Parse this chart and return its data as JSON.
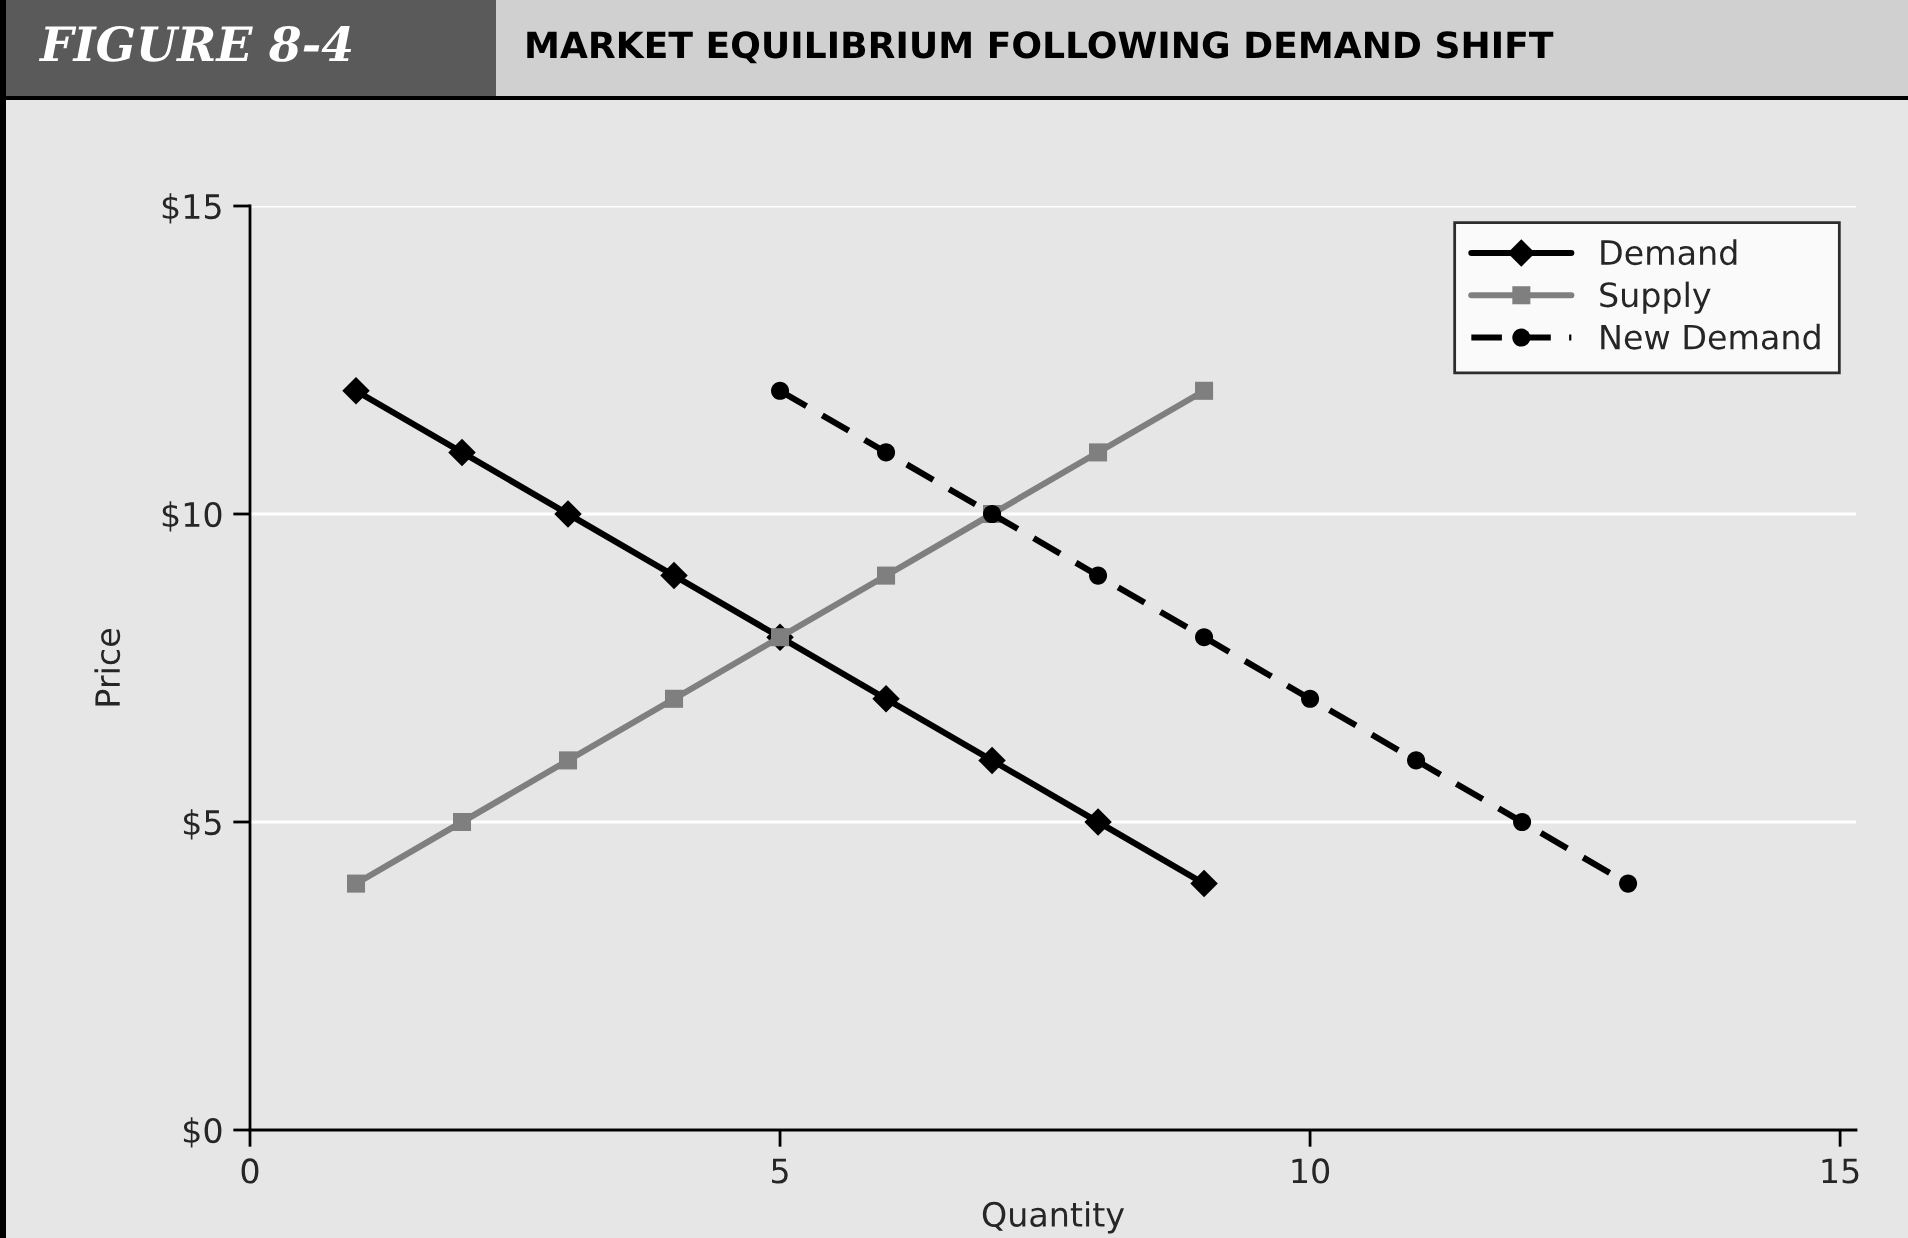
{
  "chart_data": {
    "type": "line",
    "title": "FIGURE 8-4",
    "subtitle": "MARKET EQUILIBRIUM FOLLOWING DEMAND SHIFT",
    "xlabel": "Quantity",
    "ylabel": "Price",
    "series": [
      {
        "name": "Demand",
        "color": "#000000",
        "marker": "diamond",
        "line_style": "solid",
        "x": [
          1,
          2,
          3,
          4,
          5,
          6,
          7,
          8,
          9
        ],
        "values": [
          12,
          11,
          10,
          9,
          8,
          7,
          6,
          5,
          4
        ]
      },
      {
        "name": "Supply",
        "color": "#7f7f7f",
        "marker": "square",
        "line_style": "solid",
        "x": [
          1,
          2,
          3,
          4,
          5,
          6,
          7,
          8,
          9
        ],
        "values": [
          4,
          5,
          6,
          7,
          8,
          9,
          10,
          11,
          12
        ]
      },
      {
        "name": "New Demand",
        "color": "#000000",
        "marker": "circle",
        "line_style": "dashed",
        "x": [
          5,
          6,
          7,
          8,
          9,
          10,
          11,
          12,
          13
        ],
        "values": [
          12,
          11,
          10,
          9,
          8,
          7,
          6,
          5,
          4
        ]
      }
    ],
    "xlim": [
      0,
      15.15
    ],
    "xticks": [
      0,
      5,
      10,
      15
    ],
    "ylim": [
      0,
      15
    ],
    "yticks": [
      {
        "value": 0,
        "label": "$0"
      },
      {
        "value": 5,
        "label": "$5"
      },
      {
        "value": 10,
        "label": "$10"
      },
      {
        "value": 15,
        "label": "$15"
      }
    ],
    "grid": "y",
    "legend": "top right"
  }
}
